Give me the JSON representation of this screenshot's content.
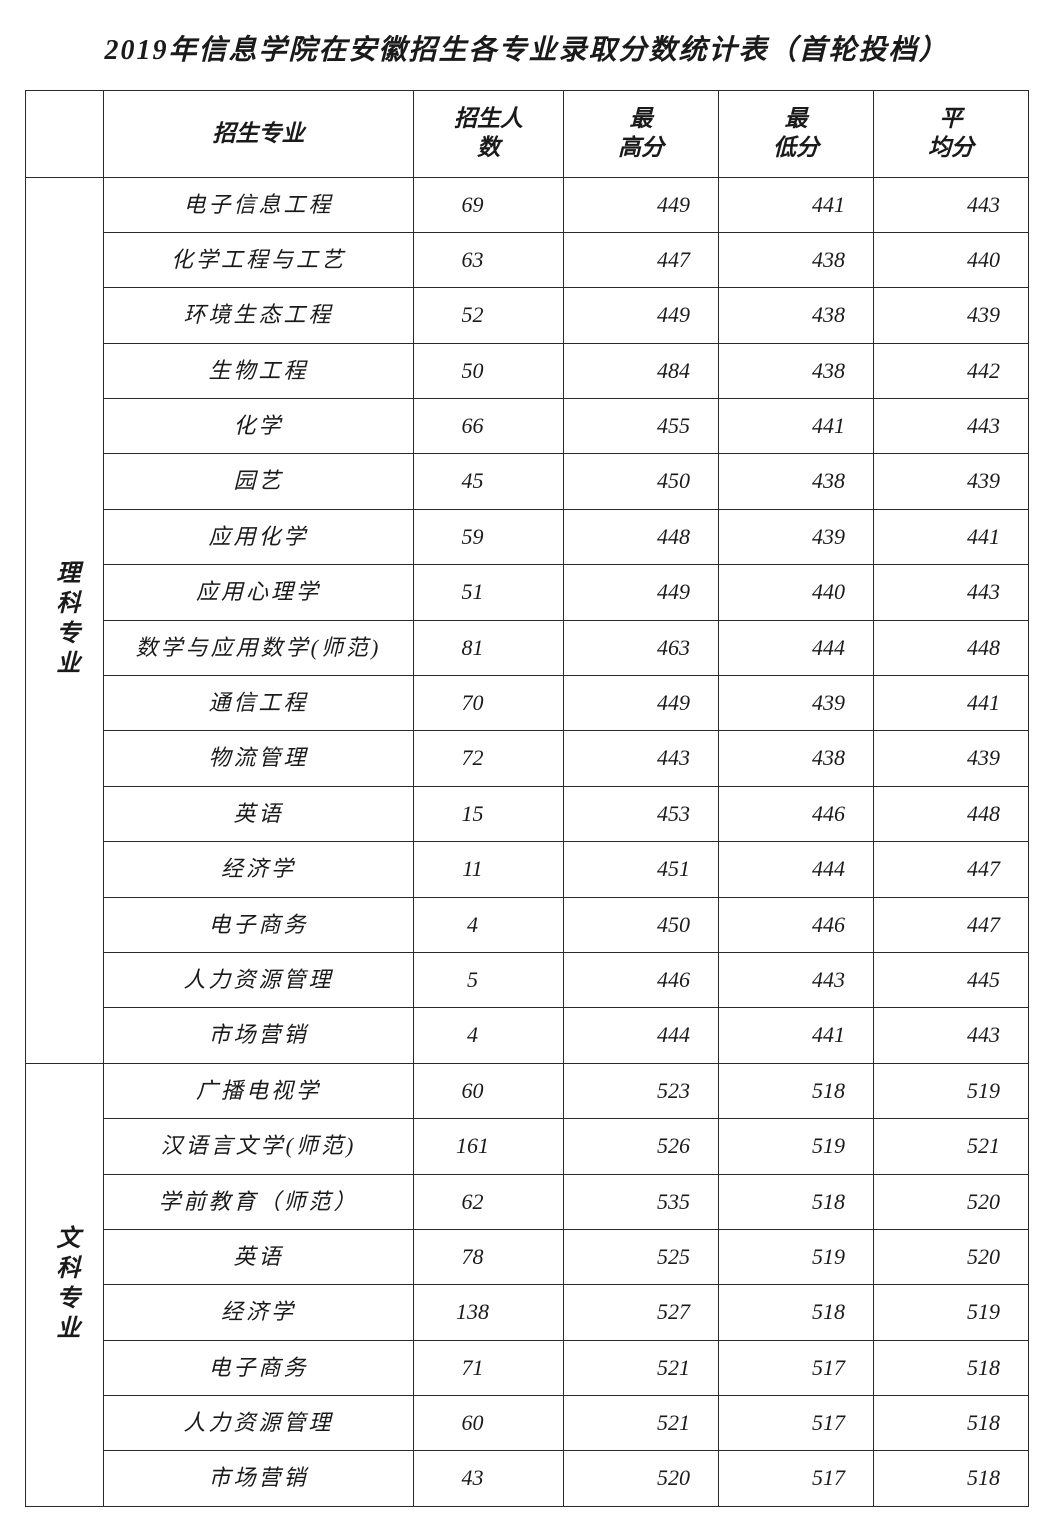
{
  "title": "2019年信息学院在安徽招生各专业录取分数统计表（首轮投档）",
  "columns": [
    "",
    "招生专业",
    "招生人数",
    "最高分",
    "最低分",
    "平均分"
  ],
  "column_headers_split": {
    "count": [
      "招生人",
      "数"
    ],
    "max": [
      "最",
      "高分"
    ],
    "min": [
      "最",
      "低分"
    ],
    "avg": [
      "平",
      "均分"
    ]
  },
  "groups": [
    {
      "category": "理科专业",
      "rows": [
        {
          "major": "电子信息工程",
          "count": "69",
          "max": "449",
          "min": "441",
          "avg": "443"
        },
        {
          "major": "化学工程与工艺",
          "count": "63",
          "max": "447",
          "min": "438",
          "avg": "440"
        },
        {
          "major": "环境生态工程",
          "count": "52",
          "max": "449",
          "min": "438",
          "avg": "439"
        },
        {
          "major": "生物工程",
          "count": "50",
          "max": "484",
          "min": "438",
          "avg": "442"
        },
        {
          "major": "化学",
          "count": "66",
          "max": "455",
          "min": "441",
          "avg": "443"
        },
        {
          "major": "园艺",
          "count": "45",
          "max": "450",
          "min": "438",
          "avg": "439"
        },
        {
          "major": "应用化学",
          "count": "59",
          "max": "448",
          "min": "439",
          "avg": "441"
        },
        {
          "major": "应用心理学",
          "count": "51",
          "max": "449",
          "min": "440",
          "avg": "443"
        },
        {
          "major": "数学与应用数学(师范)",
          "count": "81",
          "max": "463",
          "min": "444",
          "avg": "448"
        },
        {
          "major": "通信工程",
          "count": "70",
          "max": "449",
          "min": "439",
          "avg": "441"
        },
        {
          "major": "物流管理",
          "count": "72",
          "max": "443",
          "min": "438",
          "avg": "439"
        },
        {
          "major": "英语",
          "count": "15",
          "max": "453",
          "min": "446",
          "avg": "448"
        },
        {
          "major": "经济学",
          "count": "11",
          "max": "451",
          "min": "444",
          "avg": "447"
        },
        {
          "major": "电子商务",
          "count": "4",
          "max": "450",
          "min": "446",
          "avg": "447"
        },
        {
          "major": "人力资源管理",
          "count": "5",
          "max": "446",
          "min": "443",
          "avg": "445"
        },
        {
          "major": "市场营销",
          "count": "4",
          "max": "444",
          "min": "441",
          "avg": "443"
        }
      ]
    },
    {
      "category": "文科专业",
      "rows": [
        {
          "major": "广播电视学",
          "count": "60",
          "max": "523",
          "min": "518",
          "avg": "519"
        },
        {
          "major": "汉语言文学(师范)",
          "count": "161",
          "max": "526",
          "min": "519",
          "avg": "521"
        },
        {
          "major": "学前教育（师范）",
          "count": "62",
          "max": "535",
          "min": "518",
          "avg": "520"
        },
        {
          "major": "英语",
          "count": "78",
          "max": "525",
          "min": "519",
          "avg": "520"
        },
        {
          "major": "经济学",
          "count": "138",
          "max": "527",
          "min": "518",
          "avg": "519"
        },
        {
          "major": "电子商务",
          "count": "71",
          "max": "521",
          "min": "517",
          "avg": "518"
        },
        {
          "major": "人力资源管理",
          "count": "60",
          "max": "521",
          "min": "517",
          "avg": "518"
        },
        {
          "major": "市场营销",
          "count": "43",
          "max": "520",
          "min": "517",
          "avg": "518"
        }
      ]
    }
  ],
  "styling": {
    "border_color": "#2a2a2a",
    "text_color": "#1a1a1a",
    "background_color": "#ffffff",
    "font_family": "KaiTi",
    "title_fontsize": 28,
    "header_fontsize": 23,
    "cell_fontsize": 22
  }
}
